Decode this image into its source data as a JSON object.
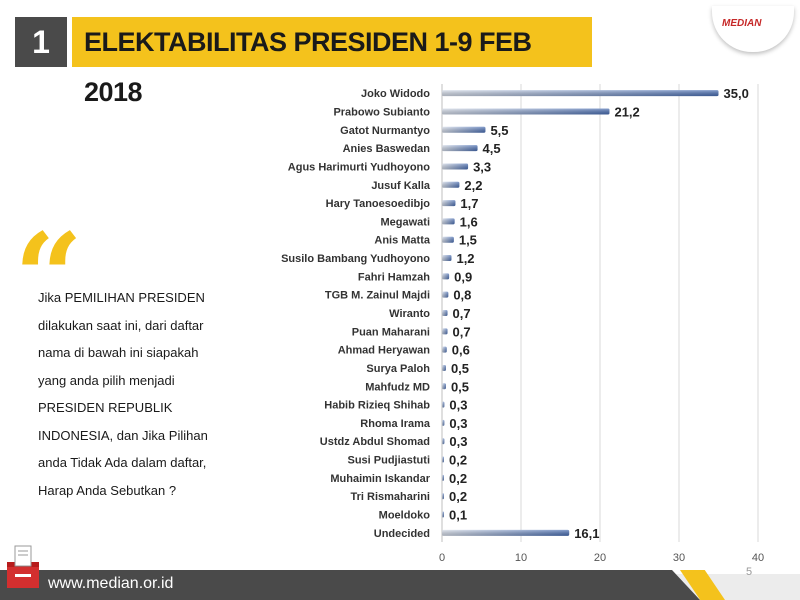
{
  "header": {
    "number": "1",
    "title": "ELEKTABILITAS PRESIDEN 1-9 FEB 2018"
  },
  "logo": {
    "text": "MEDIAN"
  },
  "question": {
    "quote_mark": "“",
    "lines": [
      "Jika PEMILIHAN PRESIDEN",
      "dilakukan saat ini, dari daftar",
      "nama di bawah ini siapakah",
      "yang anda pilih menjadi",
      "PRESIDEN REPUBLIK",
      "INDONESIA, dan Jika Pilihan",
      "anda Tidak Ada dalam daftar,",
      "Harap Anda Sebutkan  ?"
    ]
  },
  "footer": {
    "url": "www.median.or.id",
    "page": "5"
  },
  "colors": {
    "accent": "#f4c21c",
    "dark": "#4a4a4a",
    "bar": "#4a6fb5",
    "brand_red": "#c62828"
  },
  "icons": [
    "ballot-box-icon",
    "median-logo"
  ],
  "chart_data": {
    "type": "bar",
    "orientation": "horizontal",
    "categories": [
      "Joko Widodo",
      "Prabowo Subianto",
      "Gatot Nurmantyo",
      "Anies Baswedan",
      "Agus Harimurti Yudhoyono",
      "Jusuf Kalla",
      "Hary Tanoesoedibjo",
      "Megawati",
      "Anis Matta",
      "Susilo Bambang Yudhoyono",
      "Fahri Hamzah",
      "TGB M. Zainul Majdi",
      "Wiranto",
      "Puan Maharani",
      "Ahmad Heryawan",
      "Surya Paloh",
      "Mahfudz MD",
      "Habib Rizieq Shihab",
      "Rhoma Irama",
      "Ustdz Abdul Shomad",
      "Susi Pudjiastuti",
      "Muhaimin Iskandar",
      "Tri Rismaharini",
      "Moeldoko",
      "Undecided"
    ],
    "values": [
      35.0,
      21.2,
      5.5,
      4.5,
      3.3,
      2.2,
      1.7,
      1.6,
      1.5,
      1.2,
      0.9,
      0.8,
      0.7,
      0.7,
      0.6,
      0.5,
      0.5,
      0.3,
      0.3,
      0.3,
      0.2,
      0.2,
      0.2,
      0.1,
      16.1
    ],
    "value_labels": [
      "35,0",
      "21,2",
      "5,5",
      "4,5",
      "3,3",
      "2,2",
      "1,7",
      "1,6",
      "1,5",
      "1,2",
      "0,9",
      "0,8",
      "0,7",
      "0,7",
      "0,6",
      "0,5",
      "0,5",
      "0,3",
      "0,3",
      "0,3",
      "0,2",
      "0,2",
      "0,2",
      "0,1",
      "16,1"
    ],
    "xlim": [
      0,
      40
    ],
    "xticks": [
      0,
      10,
      20,
      30,
      40
    ],
    "grid": true
  }
}
